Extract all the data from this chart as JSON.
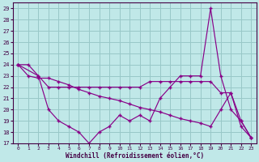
{
  "xlabel": "Windchill (Refroidissement éolien,°C)",
  "background_color": "#c0e8e8",
  "grid_color": "#98c8c8",
  "line_color": "#880088",
  "xlim": [
    -0.5,
    23.5
  ],
  "ylim": [
    17,
    29.5
  ],
  "yticks": [
    17,
    18,
    19,
    20,
    21,
    22,
    23,
    24,
    25,
    26,
    27,
    28,
    29
  ],
  "xticks": [
    0,
    1,
    2,
    3,
    4,
    5,
    6,
    7,
    8,
    9,
    10,
    11,
    12,
    13,
    14,
    15,
    16,
    17,
    18,
    19,
    20,
    21,
    22,
    23
  ],
  "curve1_x": [
    0,
    1,
    2,
    3,
    4,
    5,
    6,
    7,
    8,
    9,
    10,
    11,
    12,
    13,
    14,
    15,
    16,
    17,
    18,
    19,
    20,
    21,
    22,
    23
  ],
  "curve1_y": [
    24,
    24,
    23,
    22,
    22,
    22,
    22,
    22,
    22,
    22,
    22,
    22,
    22,
    22.5,
    22.5,
    22.5,
    22.5,
    22.5,
    22.5,
    22.5,
    21.5,
    21.5,
    18.5,
    17.5
  ],
  "curve2_x": [
    0,
    2,
    3,
    4,
    5,
    6,
    7,
    8,
    9,
    10,
    11,
    12,
    13,
    14,
    15,
    16,
    17,
    18,
    19,
    20,
    21,
    22,
    23
  ],
  "curve2_y": [
    24,
    23,
    20,
    19,
    18.5,
    18,
    17,
    18,
    18.5,
    19.5,
    19,
    19.5,
    19,
    21,
    22,
    23,
    23,
    23,
    29,
    23,
    20,
    19,
    17.5
  ],
  "curve3_x": [
    0,
    1,
    2,
    3,
    4,
    5,
    6,
    7,
    8,
    9,
    10,
    11,
    12,
    13,
    14,
    15,
    16,
    17,
    18,
    19,
    20,
    21,
    22,
    23
  ],
  "curve3_y": [
    24,
    23,
    22.8,
    22.8,
    22.5,
    22.2,
    21.8,
    21.5,
    21.2,
    21,
    20.8,
    20.5,
    20.2,
    20,
    19.8,
    19.5,
    19.2,
    19,
    18.8,
    18.5,
    20,
    21.5,
    19,
    17.5
  ]
}
